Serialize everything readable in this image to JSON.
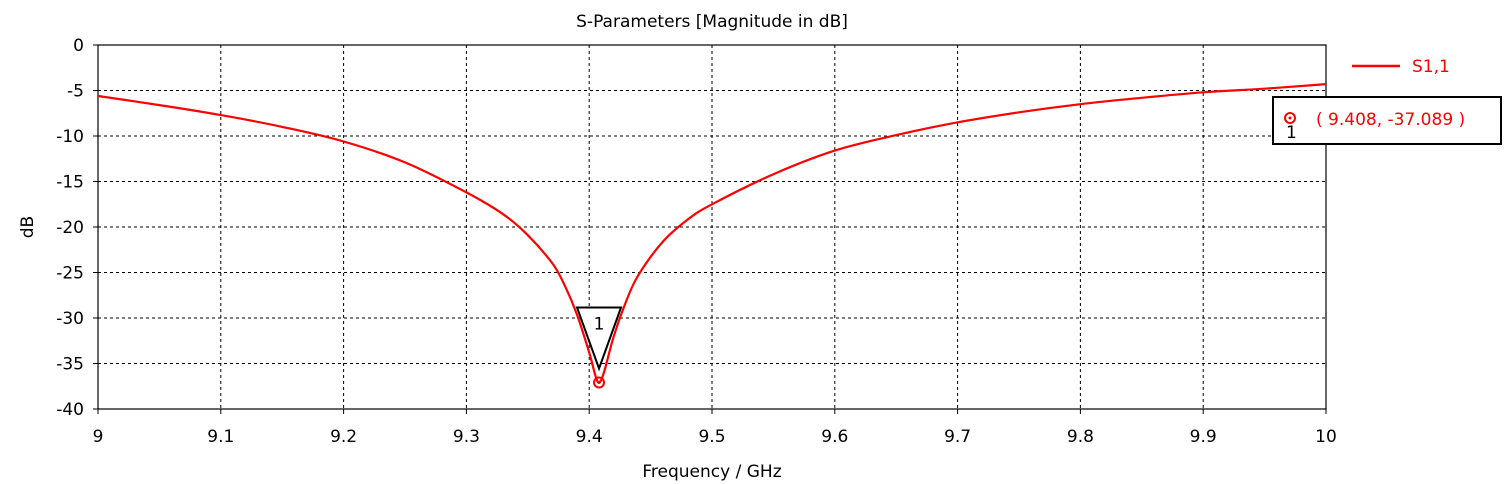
{
  "chart_data": {
    "type": "line",
    "title": "S-Parameters [Magnitude in dB]",
    "xlabel": "Frequency / GHz",
    "ylabel": "dB",
    "xlim": [
      9,
      10
    ],
    "ylim": [
      -40,
      0
    ],
    "x_ticks": [
      "9",
      "9.1",
      "9.2",
      "9.3",
      "9.4",
      "9.5",
      "9.6",
      "9.7",
      "9.8",
      "9.9",
      "10"
    ],
    "y_ticks": [
      "0",
      "-5",
      "-10",
      "-15",
      "-20",
      "-25",
      "-30",
      "-35",
      "-40"
    ],
    "grid": true,
    "legend_position": "top-right",
    "series": [
      {
        "name": "S1,1",
        "color": "#ff0000",
        "x": [
          9.0,
          9.05,
          9.1,
          9.15,
          9.2,
          9.25,
          9.3,
          9.33,
          9.35,
          9.37,
          9.38,
          9.39,
          9.4,
          9.405,
          9.408,
          9.412,
          9.42,
          9.43,
          9.44,
          9.46,
          9.48,
          9.5,
          9.55,
          9.6,
          9.65,
          9.7,
          9.75,
          9.8,
          9.85,
          9.9,
          9.95,
          10.0
        ],
        "y": [
          -5.6,
          -6.6,
          -7.7,
          -9.0,
          -10.6,
          -12.9,
          -16.2,
          -18.6,
          -20.9,
          -24.0,
          -26.4,
          -29.6,
          -33.8,
          -36.3,
          -37.1,
          -36.0,
          -32.0,
          -28.2,
          -25.3,
          -21.6,
          -19.2,
          -17.5,
          -14.2,
          -11.6,
          -9.9,
          -8.5,
          -7.4,
          -6.5,
          -5.8,
          -5.2,
          -4.8,
          -4.3
        ]
      }
    ],
    "markers": [
      {
        "id": "1",
        "x": 9.408,
        "y": -37.089,
        "readout": "( 9.408, -37.089 )"
      }
    ]
  }
}
